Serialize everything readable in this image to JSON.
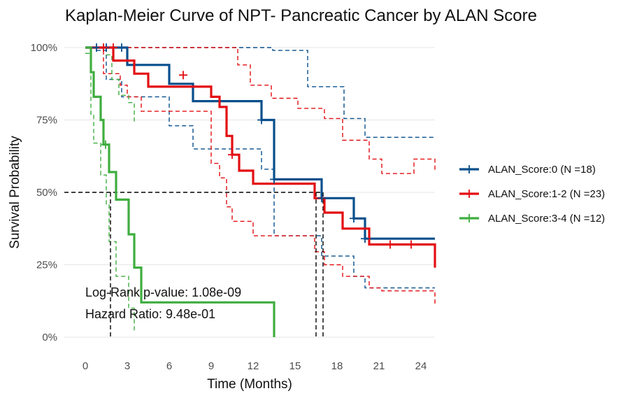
{
  "chart_data": {
    "type": "line",
    "subtype": "kaplan-meier-step",
    "title": "Kaplan-Meier Curve of NPT- Pancreatic Cancer by ALAN Score",
    "xlabel": "Time (Months)",
    "ylabel": "Survival Probability",
    "xlim": [
      -1.5,
      25
    ],
    "ylim": [
      0,
      1
    ],
    "x_ticks": [
      0,
      3,
      6,
      9,
      12,
      15,
      18,
      21,
      24
    ],
    "x_tick_labels": [
      "0",
      "3",
      "6",
      "9",
      "12",
      "15",
      "18",
      "21",
      "24"
    ],
    "y_ticks": [
      0,
      0.25,
      0.5,
      0.75,
      1.0
    ],
    "y_tick_labels": [
      "0%",
      "25%",
      "50%",
      "75%",
      "100%"
    ],
    "grid": true,
    "legend_position": "right",
    "median_reference": {
      "y": 0.5,
      "median_x": [
        1.8,
        16.5,
        17
      ]
    },
    "annotations": [
      {
        "text": "Log-Rank p-value: 1.08e-09",
        "x": 0,
        "y": 0.14
      },
      {
        "text": "Hazard Ratio: 9.48e-01",
        "x": 0,
        "y": 0.065
      }
    ],
    "series": [
      {
        "name": "ALAN_Score:0 (N =18)",
        "color": "#084f8c",
        "x": [
          0,
          3,
          6,
          7.7,
          12.6,
          13.5,
          16.9,
          19.2,
          20,
          25
        ],
        "y": [
          1.0,
          0.94,
          0.875,
          0.815,
          0.75,
          0.545,
          0.48,
          0.41,
          0.34,
          0.34
        ],
        "lower_x": [
          0,
          0.8,
          1.5,
          2.6,
          3,
          6,
          7.7,
          12.6,
          13.5,
          16.9,
          19.2,
          20,
          25
        ],
        "lower_y": [
          1.0,
          0.99,
          0.89,
          0.83,
          0.83,
          0.73,
          0.65,
          0.58,
          0.35,
          0.28,
          0.21,
          0.17,
          0.17
        ],
        "upper_x": [
          0,
          9.6,
          13.4,
          15.9,
          18.5,
          20,
          25
        ],
        "upper_y": [
          1.0,
          1.0,
          0.99,
          0.865,
          0.755,
          0.69,
          0.69
        ],
        "censor_x": [
          0.8,
          1.5,
          2.6,
          12.6,
          13.5,
          16.9,
          19.2,
          20
        ],
        "censor_y": [
          1.0,
          1.0,
          1.0,
          0.75,
          0.545,
          0.48,
          0.41,
          0.34
        ]
      },
      {
        "name": "ALAN_Score:1-2 (N =23)",
        "color": "#e30e12",
        "x": [
          0,
          2,
          3.5,
          4.5,
          9,
          9.6,
          10.1,
          10.5,
          11,
          12,
          16.4,
          17.1,
          18.4,
          20.3,
          21.2,
          24.9,
          25
        ],
        "y": [
          1.0,
          0.955,
          0.91,
          0.865,
          0.83,
          0.795,
          0.695,
          0.63,
          0.575,
          0.53,
          0.48,
          0.43,
          0.375,
          0.32,
          0.32,
          0.32,
          0.24
        ],
        "lower_x": [
          0,
          1.3,
          2.5,
          3,
          4,
          9,
          9.6,
          10.1,
          10.5,
          12,
          16.4,
          17.1,
          18.4,
          20.3,
          21.2,
          25
        ],
        "lower_y": [
          1.0,
          0.91,
          0.87,
          0.83,
          0.78,
          0.6,
          0.55,
          0.45,
          0.4,
          0.35,
          0.295,
          0.25,
          0.21,
          0.17,
          0.16,
          0.11
        ],
        "upper_x": [
          0,
          10.1,
          10.9,
          11.8,
          13.3,
          15.2,
          17.1,
          18.4,
          20.3,
          21.2,
          23.5,
          25
        ],
        "upper_y": [
          1.0,
          1.0,
          0.94,
          0.87,
          0.825,
          0.79,
          0.755,
          0.68,
          0.615,
          0.565,
          0.615,
          0.57
        ],
        "censor_x": [
          1.3,
          2,
          7,
          10.5,
          21.8,
          23.3
        ],
        "censor_y": [
          1.0,
          1.0,
          0.905,
          0.63,
          0.32,
          0.32
        ]
      },
      {
        "name": "ALAN_Score:3-4 (N =12)",
        "color": "#3fad3f",
        "x": [
          0,
          0.4,
          0.6,
          1.1,
          1.3,
          1.7,
          2.2,
          3.1,
          3.5,
          4,
          13.4,
          13.5
        ],
        "y": [
          1.0,
          0.915,
          0.83,
          0.75,
          0.665,
          0.57,
          0.475,
          0.355,
          0.24,
          0.12,
          0.12,
          0.0
        ],
        "lower_x": [
          0,
          0.4,
          0.6,
          1.1,
          1.5,
          1.7,
          2.2,
          3.1,
          3.5
        ],
        "lower_y": [
          0.98,
          0.77,
          0.67,
          0.56,
          0.46,
          0.33,
          0.21,
          0.1,
          0.02
        ],
        "upper_x": [
          0,
          1.5,
          1.9,
          2.4,
          3.1,
          3.5
        ],
        "upper_y": [
          1.0,
          0.975,
          0.89,
          0.835,
          0.81,
          0.745
        ],
        "censor_x": [
          1.45
        ],
        "censor_y": [
          0.665
        ]
      }
    ]
  }
}
